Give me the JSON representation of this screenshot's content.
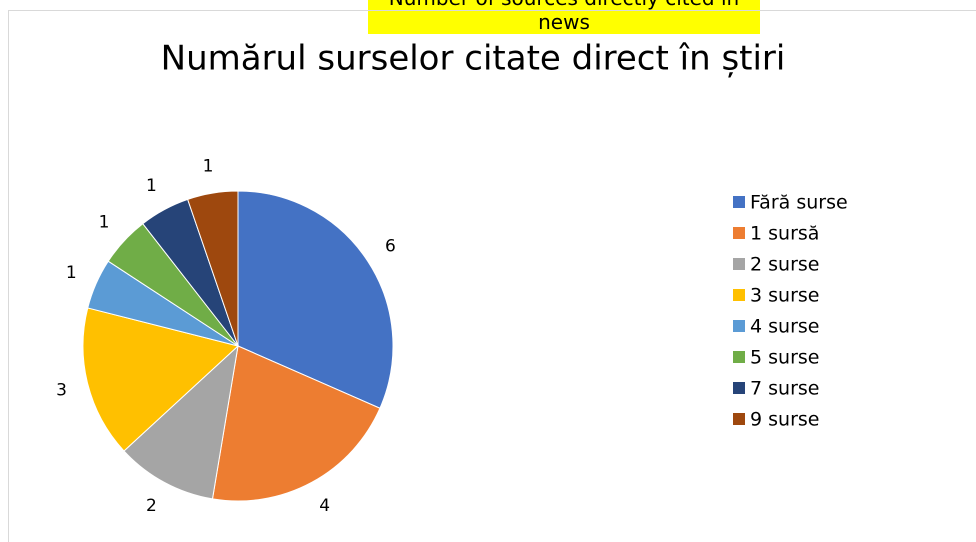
{
  "heading": "Number of sources directly cited in news",
  "chart_data": {
    "type": "pie",
    "title": "Numărul surselor citate direct în știri",
    "categories": [
      "Fără surse",
      "1 sursă",
      "2 surse",
      "3 surse",
      "4 surse",
      "5 surse",
      "7 surse",
      "9 surse"
    ],
    "values": [
      6,
      4,
      2,
      3,
      1,
      1,
      1,
      1
    ],
    "colors": [
      "#4472c4",
      "#ed7d31",
      "#a5a5a5",
      "#ffc000",
      "#5b9bd5",
      "#70ad47",
      "#264478",
      "#9e480e"
    ],
    "legend": "right"
  }
}
